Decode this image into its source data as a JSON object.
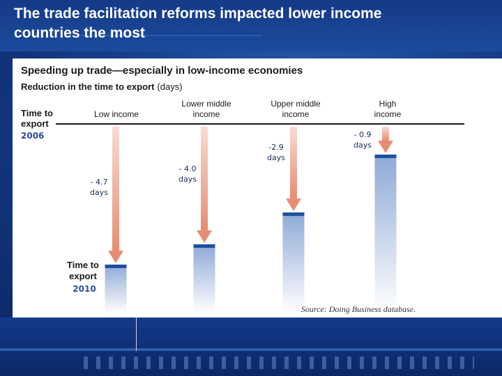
{
  "slide": {
    "title": "The trade facilitation reforms impacted lower income countries the most"
  },
  "colors": {
    "background": "#17408f",
    "arrow": "#e89a80",
    "bar_top": "#1d4f9e",
    "bar_gradient_top": "#8ea9d6",
    "bar_gradient_bottom": "#ffffff"
  },
  "chart_data": {
    "type": "bar",
    "title": "Speeding up trade—especially in low-income economies",
    "subtitle_bold": "Reduction in the time to export",
    "subtitle_unit": "(days)",
    "start_label": "Time to export",
    "start_year": "2006",
    "end_label": "Time to export",
    "end_year": "2010",
    "categories": [
      "Low income",
      "Lower middle income",
      "Upper middle income",
      "High income"
    ],
    "series": [
      {
        "values": [
          4.7,
          4.0,
          2.9,
          0.9
        ]
      }
    ],
    "value_labels": [
      "- 4.7 days",
      "- 4.0 days",
      "-2.9 days",
      "- 0.9 days"
    ],
    "source": "Source: Doing Business database.",
    "ylabel": ""
  }
}
